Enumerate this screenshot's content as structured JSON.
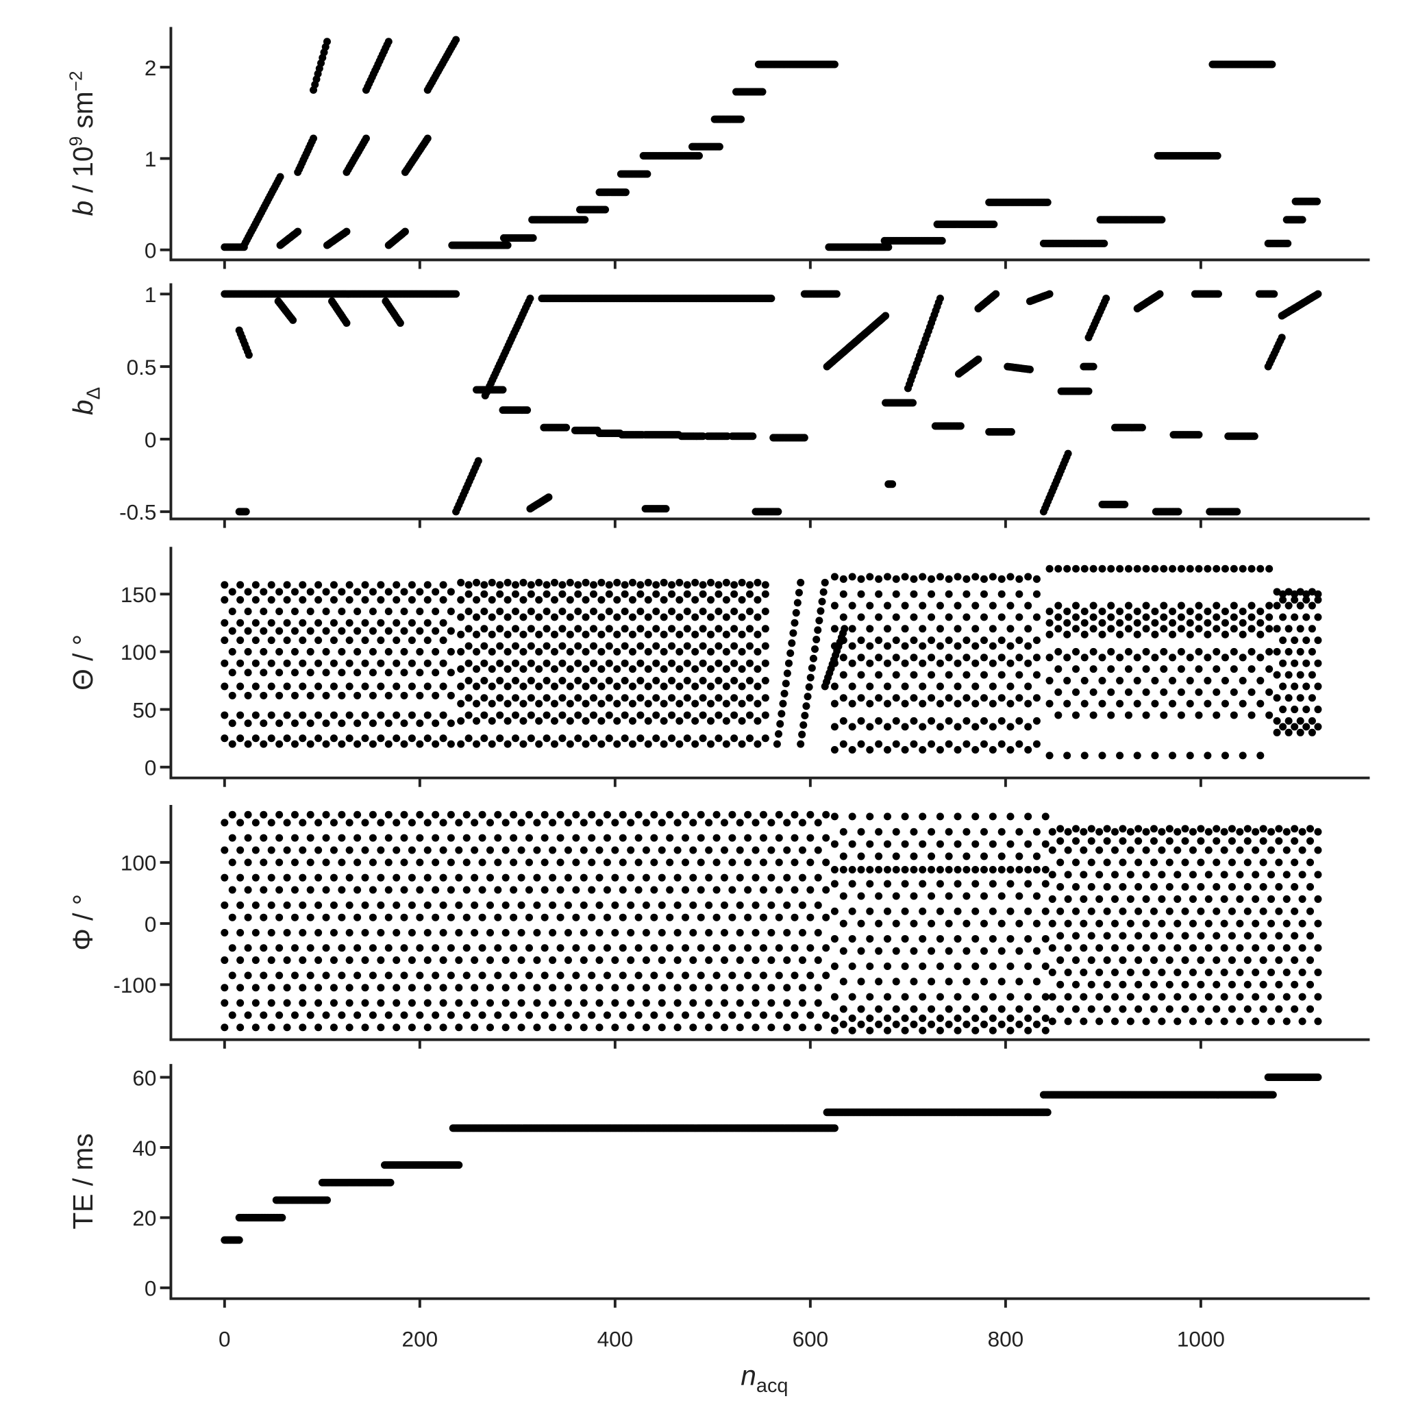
{
  "chart_data": {
    "type": "scatter",
    "xlabel": {
      "main": "n",
      "sub": "acq"
    },
    "xlim": [
      -55,
      1173
    ],
    "xticks": [
      0,
      200,
      400,
      600,
      800,
      1000
    ],
    "point_color": "#000000",
    "axis_color": "#222222",
    "panels": [
      {
        "id": "b",
        "ylabel": {
          "main": "b",
          "rest": " / 10",
          "sup": "9",
          "rest2": " sm",
          "sup2": "−2"
        },
        "ylim": [
          -0.11,
          2.44
        ],
        "yticks": [
          0,
          1,
          2
        ],
        "segments": [
          [
            0,
            20,
            0.03,
            0.03
          ],
          [
            20,
            57,
            0.05,
            0.8
          ],
          [
            57,
            75,
            0.05,
            0.2
          ],
          [
            75,
            91,
            0.85,
            1.22
          ],
          [
            91,
            105,
            1.75,
            2.28
          ],
          [
            105,
            125,
            0.05,
            0.2
          ],
          [
            125,
            145,
            0.85,
            1.22
          ],
          [
            145,
            168,
            1.75,
            2.28
          ],
          [
            168,
            185,
            0.05,
            0.2
          ],
          [
            185,
            208,
            0.85,
            1.22
          ],
          [
            208,
            237,
            1.75,
            2.3
          ],
          [
            233,
            290,
            0.05,
            0.05
          ],
          [
            286,
            316,
            0.13,
            0.13
          ],
          [
            315,
            369,
            0.33,
            0.33
          ],
          [
            364,
            390,
            0.44,
            0.44
          ],
          [
            384,
            411,
            0.63,
            0.63
          ],
          [
            406,
            433,
            0.83,
            0.83
          ],
          [
            429,
            486,
            1.03,
            1.03
          ],
          [
            479,
            507,
            1.13,
            1.13
          ],
          [
            502,
            529,
            1.43,
            1.43
          ],
          [
            524,
            551,
            1.73,
            1.73
          ],
          [
            547,
            625,
            2.03,
            2.03
          ],
          [
            619,
            680,
            0.03,
            0.03
          ],
          [
            676,
            735,
            0.1,
            0.1
          ],
          [
            730,
            788,
            0.28,
            0.28
          ],
          [
            783,
            843,
            0.52,
            0.52
          ],
          [
            839,
            901,
            0.07,
            0.07
          ],
          [
            897,
            960,
            0.33,
            0.33
          ],
          [
            956,
            1017,
            1.03,
            1.03
          ],
          [
            1012,
            1073,
            2.03,
            2.03
          ],
          [
            1069,
            1089,
            0.07,
            0.07
          ],
          [
            1088,
            1104,
            0.33,
            0.33
          ],
          [
            1097,
            1119,
            0.53,
            0.53
          ]
        ]
      },
      {
        "id": "b-delta",
        "ylabel": {
          "main": "b",
          "sub": "Δ"
        },
        "ylim": [
          -0.55,
          1.074
        ],
        "yticks": [
          1,
          0.5,
          0,
          -0.5
        ],
        "ytick_labels": [
          "1",
          "0.5",
          "0",
          "-0.5"
        ],
        "segments": [
          [
            0,
            237,
            1,
            1
          ],
          [
            15,
            25,
            0.75,
            0.58
          ],
          [
            15,
            22,
            -0.5,
            -0.5
          ],
          [
            55,
            70,
            0.95,
            0.82
          ],
          [
            110,
            125,
            0.95,
            0.8
          ],
          [
            165,
            180,
            0.95,
            0.8
          ],
          [
            237,
            260,
            -0.5,
            -0.15
          ],
          [
            258,
            285,
            0.34,
            0.34
          ],
          [
            285,
            310,
            0.2,
            0.2
          ],
          [
            267,
            313,
            0.3,
            0.97
          ],
          [
            313,
            332,
            -0.48,
            -0.4
          ],
          [
            327,
            350,
            0.08,
            0.08
          ],
          [
            359,
            382,
            0.06,
            0.06
          ],
          [
            384,
            405,
            0.04,
            0.04
          ],
          [
            407,
            428,
            0.03,
            0.03
          ],
          [
            431,
            465,
            0.03,
            0.03
          ],
          [
            468,
            490,
            0.02,
            0.02
          ],
          [
            495,
            515,
            0.02,
            0.02
          ],
          [
            520,
            541,
            0.02,
            0.02
          ],
          [
            562,
            594,
            0.01,
            0.01
          ],
          [
            325,
            560,
            0.97,
            0.97
          ],
          [
            431,
            452,
            -0.48,
            -0.48
          ],
          [
            544,
            567,
            -0.5,
            -0.5
          ],
          [
            594,
            627,
            1,
            1
          ],
          [
            617,
            677,
            0.5,
            0.85
          ],
          [
            677,
            705,
            0.25,
            0.25
          ],
          [
            680,
            684,
            -0.31,
            -0.31
          ],
          [
            700,
            733,
            0.35,
            0.97
          ],
          [
            728,
            754,
            0.09,
            0.09
          ],
          [
            752,
            772,
            0.45,
            0.55
          ],
          [
            772,
            790,
            0.9,
            1
          ],
          [
            783,
            806,
            0.05,
            0.05
          ],
          [
            802,
            825,
            0.5,
            0.48
          ],
          [
            825,
            845,
            0.95,
            1
          ],
          [
            839,
            864,
            -0.5,
            -0.1
          ],
          [
            857,
            885,
            0.33,
            0.33
          ],
          [
            880,
            890,
            0.5,
            0.5
          ],
          [
            885,
            903,
            0.7,
            0.97
          ],
          [
            899,
            922,
            -0.45,
            -0.45
          ],
          [
            912,
            940,
            0.08,
            0.08
          ],
          [
            935,
            958,
            0.9,
            1
          ],
          [
            954,
            977,
            -0.5,
            -0.5
          ],
          [
            972,
            998,
            0.03,
            0.03
          ],
          [
            994,
            1018,
            1,
            1
          ],
          [
            1009,
            1037,
            -0.5,
            -0.5
          ],
          [
            1028,
            1055,
            0.02,
            0.02
          ],
          [
            1060,
            1075,
            1,
            1
          ],
          [
            1069,
            1083,
            0.5,
            0.7
          ],
          [
            1083,
            1120,
            0.85,
            1
          ]
        ]
      },
      {
        "id": "theta",
        "ylabel": {
          "main": "Θ / °"
        },
        "ylim": [
          -9.4,
          191
        ],
        "yticks": [
          0,
          50,
          100,
          150
        ],
        "columns": [
          {
            "x": [
              0,
              237
            ],
            "step": 8,
            "levels_a": [
              25,
              45,
              70,
              90,
              110,
              125,
              145,
              158
            ],
            "levels_b": [
              20,
              38,
              62,
              82,
              100,
              118,
              135,
              152
            ]
          },
          {
            "x": [
              242,
              560
            ],
            "step": 8,
            "levels_a": [
              20,
              40,
              55,
              70,
              85,
              100,
              115,
              130,
              145,
              160
            ],
            "levels_b": [
              25,
              45,
              60,
              75,
              90,
              105,
              120,
              135,
              150,
              158
            ]
          },
          {
            "x": [
              625,
              840
            ],
            "step": 9,
            "levels_a": [
              15,
              35,
              55,
              70,
              90,
              105,
              120,
              140,
              165
            ],
            "levels_b": [
              20,
              40,
              60,
              80,
              95,
              110,
              130,
              150,
              163
            ]
          },
          {
            "x": [
              845,
              1075
            ],
            "step": 9,
            "levels_a": [
              10,
              55,
              75,
              95,
              115,
              125,
              135,
              172
            ],
            "levels_b": [
              45,
              65,
              85,
              100,
              120,
              130,
              140,
              172
            ]
          },
          {
            "x": [
              1078,
              1120
            ],
            "step": 6,
            "levels_a": [
              30,
              40,
              60,
              80,
              100,
              120,
              140,
              152
            ],
            "levels_b": [
              35,
              50,
              70,
              90,
              110,
              130,
              145,
              150
            ]
          }
        ],
        "segments": [
          [
            566,
            590,
            20,
            160
          ],
          [
            590,
            615,
            20,
            160
          ],
          [
            615,
            635,
            70,
            120
          ]
        ]
      },
      {
        "id": "phi",
        "ylabel": {
          "main": "Φ / °"
        },
        "ylim": [
          -190,
          194
        ],
        "yticks": [
          100,
          0,
          -100
        ],
        "columns": [
          {
            "x": [
              0,
              620
            ],
            "step": 8,
            "levels_a": [
              -170,
              -130,
              -105,
              -60,
              -15,
              30,
              75,
              120,
              165
            ],
            "levels_b": [
              -150,
              -85,
              -40,
              10,
              55,
              100,
              140,
              178
            ]
          },
          {
            "x": [
              625,
              845
            ],
            "step": 9,
            "levels_a": [
              -175,
              -155,
              -120,
              -70,
              -25,
              20,
              65,
              88,
              130,
              175
            ],
            "levels_b": [
              -165,
              -140,
              -95,
              -45,
              0,
              45,
              88,
              110,
              150
            ]
          },
          {
            "x": [
              848,
              1120
            ],
            "step": 8,
            "levels_a": [
              -160,
              -120,
              -80,
              -40,
              0,
              40,
              80,
              120,
              150
            ],
            "levels_b": [
              -140,
              -100,
              -60,
              -20,
              20,
              60,
              100,
              135,
              155
            ]
          }
        ],
        "segments": []
      },
      {
        "id": "te",
        "ylabel": {
          "main": "TE / ms"
        },
        "ylim": [
          -3.1,
          63.8
        ],
        "yticks": [
          0,
          20,
          40,
          60
        ],
        "segments": [
          [
            0,
            15,
            13.6,
            13.6
          ],
          [
            15,
            59,
            20,
            20
          ],
          [
            53,
            105,
            25,
            25
          ],
          [
            100,
            170,
            30,
            30
          ],
          [
            164,
            240,
            35,
            35
          ],
          [
            234,
            625,
            45.5,
            45.5
          ],
          [
            617,
            843,
            50,
            50
          ],
          [
            839,
            1074,
            55,
            55
          ],
          [
            1069,
            1120,
            60,
            60
          ]
        ]
      }
    ]
  }
}
